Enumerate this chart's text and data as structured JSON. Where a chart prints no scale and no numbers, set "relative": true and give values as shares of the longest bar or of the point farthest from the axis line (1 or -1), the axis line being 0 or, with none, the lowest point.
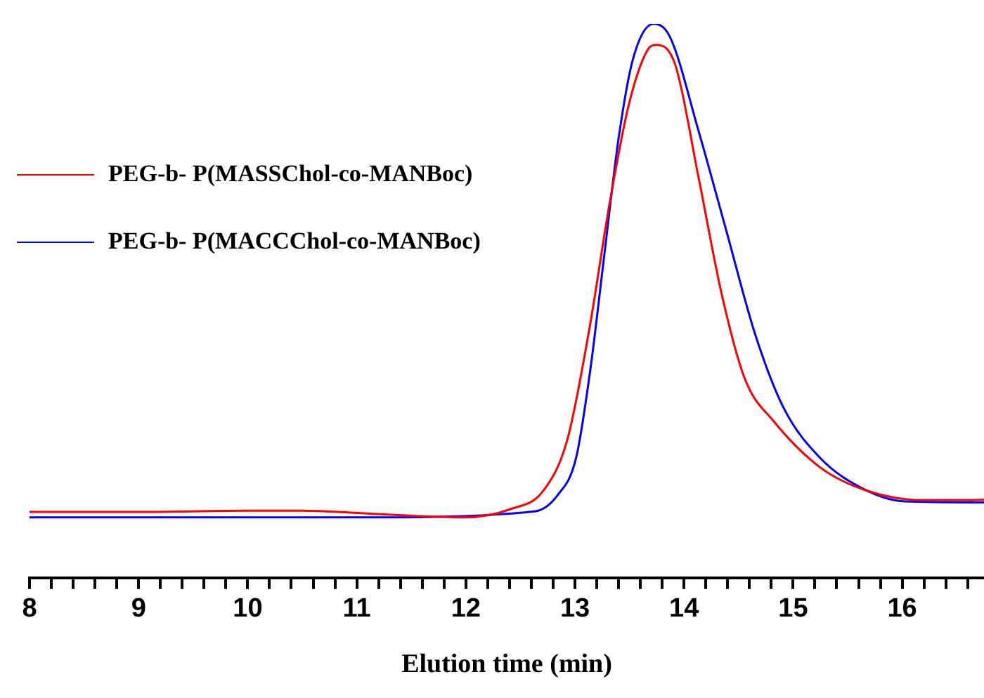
{
  "chart_data": {
    "type": "line",
    "xlabel": "Elution time (min)",
    "relative": true,
    "legend": "top left",
    "grid": false,
    "marker": "none",
    "line_style": "solid",
    "xlim": [
      8,
      16.75
    ],
    "xticks": [
      8,
      {
        "value": 8.2,
        "label": null
      },
      {
        "value": 8.4,
        "label": null
      },
      {
        "value": 8.6,
        "label": null
      },
      {
        "value": 8.8,
        "label": null
      },
      9,
      {
        "value": 9.2,
        "label": null
      },
      {
        "value": 9.4,
        "label": null
      },
      {
        "value": 9.6,
        "label": null
      },
      {
        "value": 9.8,
        "label": null
      },
      10,
      {
        "value": 10.2,
        "label": null
      },
      {
        "value": 10.4,
        "label": null
      },
      {
        "value": 10.6,
        "label": null
      },
      {
        "value": 10.8,
        "label": null
      },
      11,
      {
        "value": 11.2,
        "label": null
      },
      {
        "value": 11.4,
        "label": null
      },
      {
        "value": 11.6,
        "label": null
      },
      {
        "value": 11.8,
        "label": null
      },
      12,
      {
        "value": 12.2,
        "label": null
      },
      {
        "value": 12.4,
        "label": null
      },
      {
        "value": 12.6,
        "label": null
      },
      {
        "value": 12.8,
        "label": null
      },
      13,
      {
        "value": 13.2,
        "label": null
      },
      {
        "value": 13.4,
        "label": null
      },
      {
        "value": 13.6,
        "label": null
      },
      {
        "value": 13.8,
        "label": null
      },
      14,
      {
        "value": 14.2,
        "label": null
      },
      {
        "value": 14.4,
        "label": null
      },
      {
        "value": 14.6,
        "label": null
      },
      {
        "value": 14.8,
        "label": null
      },
      15,
      {
        "value": 15.2,
        "label": null
      },
      {
        "value": 15.4,
        "label": null
      },
      {
        "value": 15.6,
        "label": null
      },
      {
        "value": 15.8,
        "label": null
      },
      16,
      {
        "value": 16.2,
        "label": null
      },
      {
        "value": 16.4,
        "label": null
      },
      {
        "value": 16.6,
        "label": null
      }
    ],
    "series": [
      {
        "name": "PEG-b- P(MASSChol-co-MANBoc)",
        "color": "#ff0000",
        "x": [
          8,
          9,
          10,
          10.5,
          11,
          11.5,
          11.98,
          12.41,
          12.71,
          12.93,
          13.14,
          13.31,
          13.49,
          13.66,
          13.75,
          13.92,
          14.13,
          14.35,
          14.56,
          14.82,
          15.25,
          15.68,
          16.2,
          16.54,
          16.75
        ],
        "values": [
          0.119,
          0.119,
          0.121,
          0.121,
          0.117,
          0.112,
          0.109,
          0.124,
          0.157,
          0.249,
          0.458,
          0.667,
          0.851,
          0.951,
          0.962,
          0.926,
          0.726,
          0.508,
          0.358,
          0.283,
          0.199,
          0.157,
          0.14,
          0.14,
          0.141
        ]
      },
      {
        "name": "PEG-b- P(MACCChol-co-MANBoc)",
        "color": "#0000ff",
        "x": [
          8,
          9,
          10,
          11,
          12.63,
          12.84,
          13.01,
          13.14,
          13.27,
          13.4,
          13.53,
          13.72,
          13.87,
          14.13,
          14.39,
          14.65,
          14.91,
          15.25,
          15.68,
          16.02,
          16.75
        ],
        "values": [
          0.109,
          0.109,
          0.109,
          0.109,
          0.12,
          0.149,
          0.216,
          0.374,
          0.584,
          0.793,
          0.935,
          1,
          0.977,
          0.809,
          0.625,
          0.441,
          0.308,
          0.216,
          0.157,
          0.138,
          0.136
        ]
      }
    ]
  }
}
